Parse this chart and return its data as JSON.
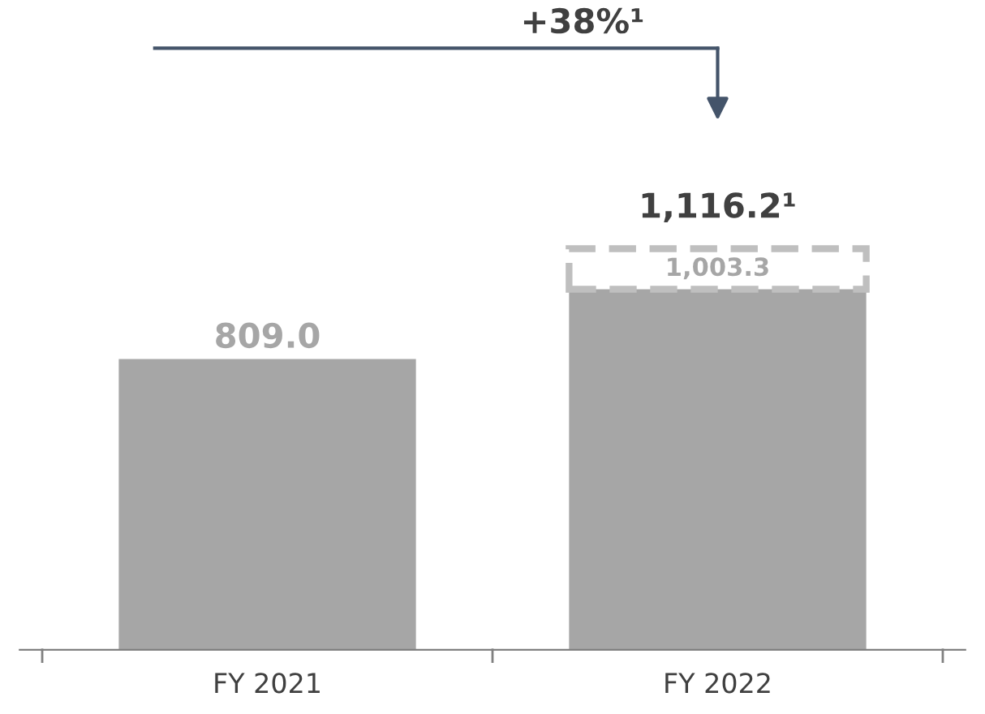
{
  "chart_data": {
    "type": "bar",
    "stacked": true,
    "categories": [
      "FY 2021",
      "FY 2022"
    ],
    "series": [
      {
        "color": "#a6a6a6",
        "values": [
          809.0,
          1003.3
        ],
        "value_labels": [
          "809.0",
          "1,003.3"
        ]
      },
      {
        "color": "#bfbfbf",
        "values": [
          null,
          112.9
        ],
        "line_style": "dashed"
      }
    ],
    "totals": [
      null,
      "1,116.2¹"
    ],
    "annotations": [
      "+38%¹"
    ],
    "legend": false,
    "grid": false
  }
}
